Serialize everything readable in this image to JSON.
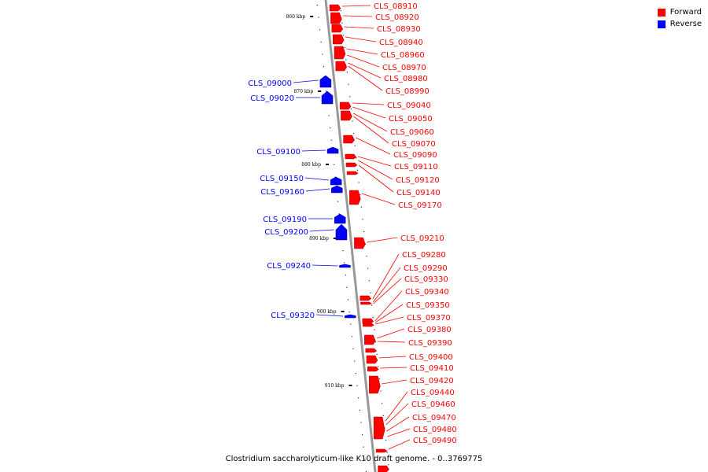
{
  "legend": {
    "forward_label": "Forward",
    "reverse_label": "Reverse",
    "forward_color": "#ff0000",
    "reverse_color": "#0000ff"
  },
  "caption": "Clostridium saccharolyticum-like K10 draft genome. - 0..3769775",
  "ticks": [
    "860 kbp",
    "870 kbp",
    "880 kbp",
    "890 kbp",
    "900 kbp",
    "910 kbp"
  ],
  "forward_genes": [
    "CLS_08910",
    "CLS_08920",
    "CLS_08930",
    "CLS_08940",
    "CLS_08960",
    "CLS_08970",
    "CLS_08980",
    "CLS_08990",
    "CLS_09040",
    "CLS_09050",
    "CLS_09060",
    "CLS_09070",
    "CLS_09090",
    "CLS_09110",
    "CLS_09120",
    "CLS_09140",
    "CLS_09170",
    "CLS_09210",
    "CLS_09280",
    "CLS_09290",
    "CLS_09330",
    "CLS_09340",
    "CLS_09350",
    "CLS_09370",
    "CLS_09380",
    "CLS_09390",
    "CLS_09400",
    "CLS_09410",
    "CLS_09420",
    "CLS_09440",
    "CLS_09460",
    "CLS_09470",
    "CLS_09480",
    "CLS_09490"
  ],
  "reverse_genes": [
    "CLS_09000",
    "CLS_09020",
    "CLS_09100",
    "CLS_09150",
    "CLS_09160",
    "CLS_09190",
    "CLS_09200",
    "CLS_09240",
    "CLS_09320"
  ]
}
